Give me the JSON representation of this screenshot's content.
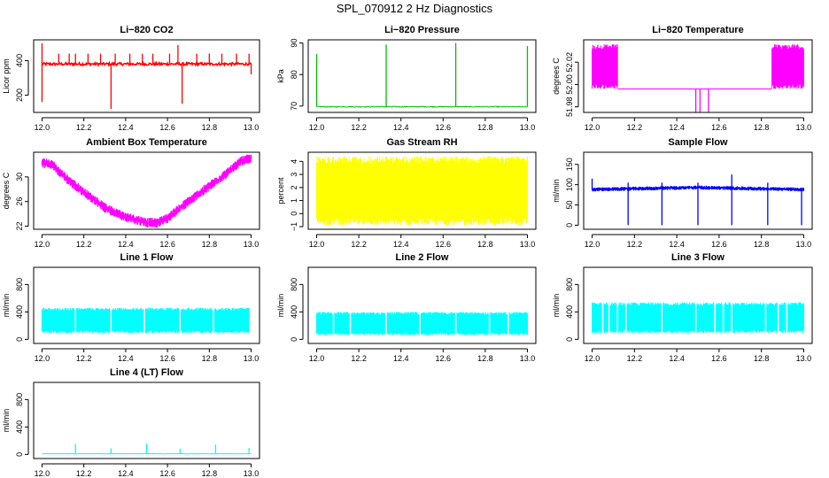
{
  "page_title": "SPL_070912  2 Hz Diagnostics",
  "chart_data": [
    {
      "id": "co2",
      "type": "line",
      "title": "Li−820 CO2",
      "ylabel": "Licor ppm",
      "color": "#ff0000",
      "xlim": [
        12.0,
        13.0
      ],
      "ylim": [
        100,
        520
      ],
      "xticks": [
        12.0,
        12.2,
        12.4,
        12.6,
        12.8,
        13.0
      ],
      "xtick_labels": [
        "12.0",
        "12.2",
        "12.4",
        "12.6",
        "12.8",
        "13.0"
      ],
      "yticks": [
        200,
        400
      ],
      "ytick_labels": [
        "200",
        "400"
      ],
      "series": [
        {
          "name": "CO2",
          "baseline": 380,
          "noise": 15,
          "spikes": [
            [
              12.0,
              160
            ],
            [
              12.0,
              500
            ],
            [
              12.08,
              440
            ],
            [
              12.13,
              440
            ],
            [
              12.16,
              440
            ],
            [
              12.22,
              440
            ],
            [
              12.28,
              440
            ],
            [
              12.33,
              120
            ],
            [
              12.35,
              440
            ],
            [
              12.42,
              440
            ],
            [
              12.48,
              440
            ],
            [
              12.53,
              440
            ],
            [
              12.61,
              440
            ],
            [
              12.65,
              490
            ],
            [
              12.67,
              150
            ],
            [
              12.74,
              440
            ],
            [
              12.8,
              440
            ],
            [
              12.86,
              440
            ],
            [
              12.93,
              440
            ],
            [
              12.99,
              440
            ],
            [
              13.0,
              320
            ]
          ]
        }
      ]
    },
    {
      "id": "pressure",
      "type": "line",
      "title": "Li−820 Pressure",
      "ylabel": "kPa",
      "color": "#00c000",
      "xlim": [
        12.0,
        13.0
      ],
      "ylim": [
        68,
        91
      ],
      "xticks": [
        12.0,
        12.2,
        12.4,
        12.6,
        12.8,
        13.0
      ],
      "xtick_labels": [
        "12.0",
        "12.2",
        "12.4",
        "12.6",
        "12.8",
        "13.0"
      ],
      "yticks": [
        70,
        80,
        90
      ],
      "ytick_labels": [
        "70",
        "80",
        "90"
      ],
      "series": [
        {
          "name": "Pressure",
          "baseline": 69.8,
          "noise": 0.3,
          "spikes": [
            [
              12.0,
              86.5
            ],
            [
              12.33,
              89.5
            ],
            [
              12.66,
              90.0
            ],
            [
              13.0,
              89.0
            ]
          ]
        }
      ]
    },
    {
      "id": "temperature",
      "type": "line",
      "title": "Li−820 Temperature",
      "ylabel": "degrees C",
      "color": "#ff00ff",
      "xlim": [
        12.0,
        13.0
      ],
      "ylim": [
        51.975,
        52.04
      ],
      "xticks": [
        12.0,
        12.2,
        12.4,
        12.6,
        12.8,
        13.0
      ],
      "xtick_labels": [
        "12.0",
        "12.2",
        "12.4",
        "12.6",
        "12.8",
        "13.0"
      ],
      "yticks": [
        51.98,
        52.0,
        52.02
      ],
      "ytick_labels": [
        "51.98",
        "52.00",
        "52.02"
      ],
      "series": [
        {
          "name": "Temperature",
          "baseline": 51.996,
          "bands": [
            [
              12.0,
              12.12,
              51.996,
              52.036
            ],
            [
              12.85,
              13.0,
              51.996,
              52.036
            ]
          ],
          "spikes": [
            [
              12.49,
              51.975
            ],
            [
              12.51,
              51.975
            ],
            [
              12.55,
              51.975
            ]
          ]
        }
      ]
    },
    {
      "id": "ambient",
      "type": "line",
      "title": "Ambient Box Temperature",
      "ylabel": "degrees C",
      "color": "#ff00ff",
      "xlim": [
        12.0,
        13.0
      ],
      "ylim": [
        21.5,
        34.0
      ],
      "xticks": [
        12.0,
        12.2,
        12.4,
        12.6,
        12.8,
        13.0
      ],
      "xtick_labels": [
        "12.0",
        "12.2",
        "12.4",
        "12.6",
        "12.8",
        "13.0"
      ],
      "yticks": [
        22,
        26,
        30
      ],
      "ytick_labels": [
        "22",
        "26",
        "30"
      ],
      "series": [
        {
          "name": "Ambient",
          "noise": 0.8,
          "trend": [
            [
              12.0,
              32.3
            ],
            [
              12.05,
              32.0
            ],
            [
              12.1,
              30.2
            ],
            [
              12.2,
              27.5
            ],
            [
              12.3,
              25.0
            ],
            [
              12.4,
              23.5
            ],
            [
              12.5,
              22.6
            ],
            [
              12.55,
              22.5
            ],
            [
              12.6,
              23.3
            ],
            [
              12.7,
              26.0
            ],
            [
              12.8,
              28.5
            ],
            [
              12.9,
              31.0
            ],
            [
              12.95,
              32.5
            ],
            [
              13.0,
              33.0
            ]
          ]
        }
      ]
    },
    {
      "id": "rh",
      "type": "line",
      "title": "Gas Stream RH",
      "ylabel": "percent",
      "color": "#ffff00",
      "xlim": [
        12.0,
        13.0
      ],
      "ylim": [
        -1.2,
        4.7
      ],
      "xticks": [
        12.0,
        12.2,
        12.4,
        12.6,
        12.8,
        13.0
      ],
      "xtick_labels": [
        "12.0",
        "12.2",
        "12.4",
        "12.6",
        "12.8",
        "13.0"
      ],
      "yticks": [
        -1,
        0,
        1,
        2,
        3,
        4
      ],
      "ytick_labels": [
        "−1",
        "0",
        "1",
        "2",
        "3",
        "4"
      ],
      "series": [
        {
          "name": "RH",
          "bands": [
            [
              12.0,
              13.0,
              -0.9,
              4.4
            ]
          ]
        }
      ]
    },
    {
      "id": "sample",
      "type": "line",
      "title": "Sample Flow",
      "ylabel": "ml/min",
      "color": "#0000ff",
      "xlim": [
        12.0,
        13.0
      ],
      "ylim": [
        -10,
        180
      ],
      "xticks": [
        12.0,
        12.2,
        12.4,
        12.6,
        12.8,
        13.0
      ],
      "xtick_labels": [
        "12.0",
        "12.2",
        "12.4",
        "12.6",
        "12.8",
        "13.0"
      ],
      "yticks": [
        0,
        50,
        100,
        150
      ],
      "ytick_labels": [
        "0",
        "50",
        "100",
        "150"
      ],
      "series": [
        {
          "name": "Sample Flow",
          "noise": 5,
          "trend": [
            [
              12.0,
              88
            ],
            [
              12.5,
              93
            ],
            [
              13.0,
              88
            ]
          ],
          "spikes": [
            [
              12.0,
              115
            ],
            [
              12.17,
              0
            ],
            [
              12.17,
              105
            ],
            [
              12.33,
              0
            ],
            [
              12.33,
              105
            ],
            [
              12.5,
              0
            ],
            [
              12.5,
              105
            ],
            [
              12.66,
              0
            ],
            [
              12.66,
              125
            ],
            [
              12.83,
              0
            ],
            [
              12.83,
              105
            ],
            [
              12.99,
              0
            ]
          ]
        }
      ]
    },
    {
      "id": "line1",
      "type": "line",
      "title": "Line 1 Flow",
      "ylabel": "ml/min",
      "color": "#00ffff",
      "xlim": [
        12.0,
        13.0
      ],
      "ylim": [
        -60,
        1050
      ],
      "xticks": [
        12.0,
        12.2,
        12.4,
        12.6,
        12.8,
        13.0
      ],
      "xtick_labels": [
        "12.0",
        "12.2",
        "12.4",
        "12.6",
        "12.8",
        "13.0"
      ],
      "yticks": [
        0,
        400,
        800
      ],
      "ytick_labels": [
        "0",
        "400",
        "800"
      ],
      "series": [
        {
          "name": "Line 1 Flow",
          "bands": [
            [
              12.0,
              12.99,
              90,
              460
            ]
          ],
          "gaps": [
            12.16,
            12.33,
            12.49,
            12.66,
            12.82
          ]
        }
      ]
    },
    {
      "id": "line2",
      "type": "line",
      "title": "Line 2 Flow",
      "ylabel": "ml/min",
      "color": "#00ffff",
      "xlim": [
        12.0,
        13.0
      ],
      "ylim": [
        -60,
        1050
      ],
      "xticks": [
        12.0,
        12.2,
        12.4,
        12.6,
        12.8,
        13.0
      ],
      "xtick_labels": [
        "12.0",
        "12.2",
        "12.4",
        "12.6",
        "12.8",
        "13.0"
      ],
      "yticks": [
        0,
        400,
        800
      ],
      "ytick_labels": [
        "0",
        "400",
        "800"
      ],
      "series": [
        {
          "name": "Line 2 Flow",
          "bands": [
            [
              12.0,
              13.0,
              60,
              400
            ]
          ],
          "gaps": [
            12.08,
            12.16,
            12.33,
            12.49,
            12.66,
            12.82,
            12.91
          ]
        }
      ]
    },
    {
      "id": "line3",
      "type": "line",
      "title": "Line 3 Flow",
      "ylabel": "ml/min",
      "color": "#00ffff",
      "xlim": [
        12.0,
        13.0
      ],
      "ylim": [
        -60,
        1050
      ],
      "xticks": [
        12.0,
        12.2,
        12.4,
        12.6,
        12.8,
        13.0
      ],
      "xtick_labels": [
        "12.0",
        "12.2",
        "12.4",
        "12.6",
        "12.8",
        "13.0"
      ],
      "yticks": [
        0,
        400,
        800
      ],
      "ytick_labels": [
        "0",
        "400",
        "800"
      ],
      "series": [
        {
          "name": "Line 3 Flow",
          "bands": [
            [
              12.0,
              13.0,
              90,
              540
            ]
          ],
          "gaps": [
            12.05,
            12.08,
            12.12,
            12.16,
            12.33,
            12.49,
            12.58,
            12.62,
            12.66,
            12.82,
            12.88,
            12.92
          ]
        }
      ]
    },
    {
      "id": "line4",
      "type": "line",
      "title": "Line 4 (LT) Flow",
      "ylabel": "ml/min",
      "color": "#00ffff",
      "xlim": [
        12.0,
        13.0
      ],
      "ylim": [
        -60,
        1050
      ],
      "xticks": [
        12.0,
        12.2,
        12.4,
        12.6,
        12.8,
        13.0
      ],
      "xtick_labels": [
        "12.0",
        "12.2",
        "12.4",
        "12.6",
        "12.8",
        "13.0"
      ],
      "yticks": [
        0,
        400,
        800
      ],
      "ytick_labels": [
        "0",
        "400",
        "800"
      ],
      "series": [
        {
          "name": "Line 4 Flow",
          "baseline": 10,
          "noise": 4,
          "spikes": [
            [
              12.16,
              150
            ],
            [
              12.33,
              90
            ],
            [
              12.5,
              160
            ],
            [
              12.66,
              85
            ],
            [
              12.83,
              145
            ],
            [
              12.99,
              95
            ]
          ]
        }
      ]
    }
  ]
}
